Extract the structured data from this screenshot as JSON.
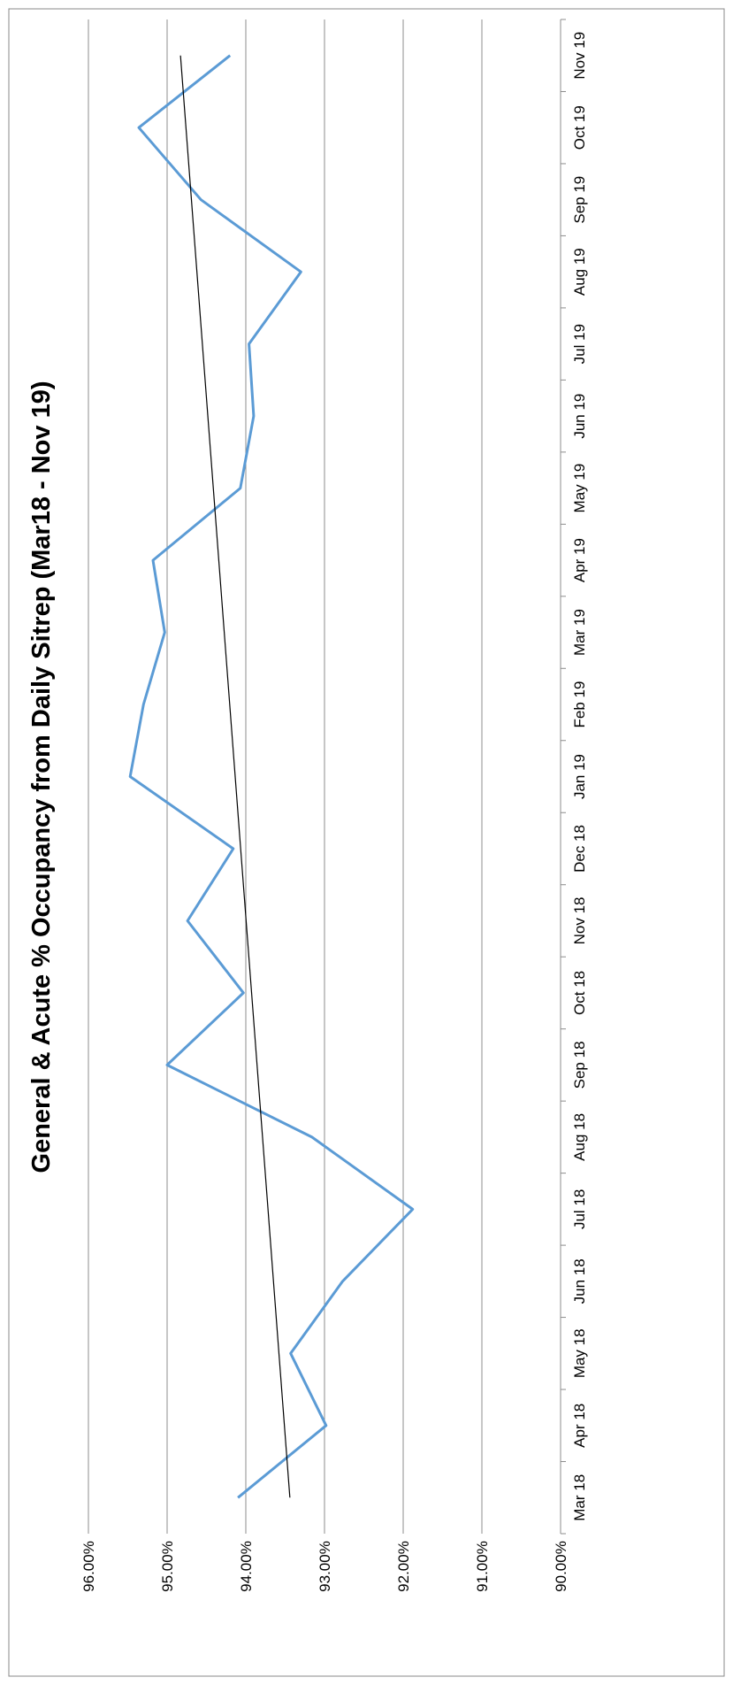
{
  "chart_data": {
    "type": "line",
    "title": "General & Acute % Occupancy from Daily Sitrep (Mar18 - Nov 19)",
    "xlabel": "",
    "ylabel": "",
    "categories": [
      "Mar 18",
      "Apr 18",
      "May 18",
      "Jun 18",
      "Jul 18",
      "Aug 18",
      "Sep 18",
      "Oct 18",
      "Nov 18",
      "Dec 18",
      "Jan 19",
      "Feb 19",
      "Mar 19",
      "Apr 19",
      "May 19",
      "Jun 19",
      "Jul 19",
      "Aug 19",
      "Sep 19",
      "Oct 19",
      "Nov 19"
    ],
    "series": [
      {
        "values": [
          94.1,
          92.98,
          93.43,
          92.77,
          91.88,
          93.16,
          95.0,
          94.03,
          94.74,
          94.16,
          95.47,
          95.3,
          95.03,
          95.18,
          94.07,
          93.9,
          93.96,
          93.3,
          94.57,
          95.36,
          94.2
        ],
        "color": "#5B9BD5"
      }
    ],
    "trendline": {
      "start": 93.44,
      "end": 94.83,
      "color": "#000000"
    },
    "ylim": [
      90,
      96
    ],
    "yticks": [
      "90.00%",
      "91.00%",
      "92.00%",
      "93.00%",
      "94.00%",
      "95.00%",
      "96.00%"
    ],
    "grid": true,
    "legend": "none",
    "orientation": "rotated-90-clockwise"
  }
}
